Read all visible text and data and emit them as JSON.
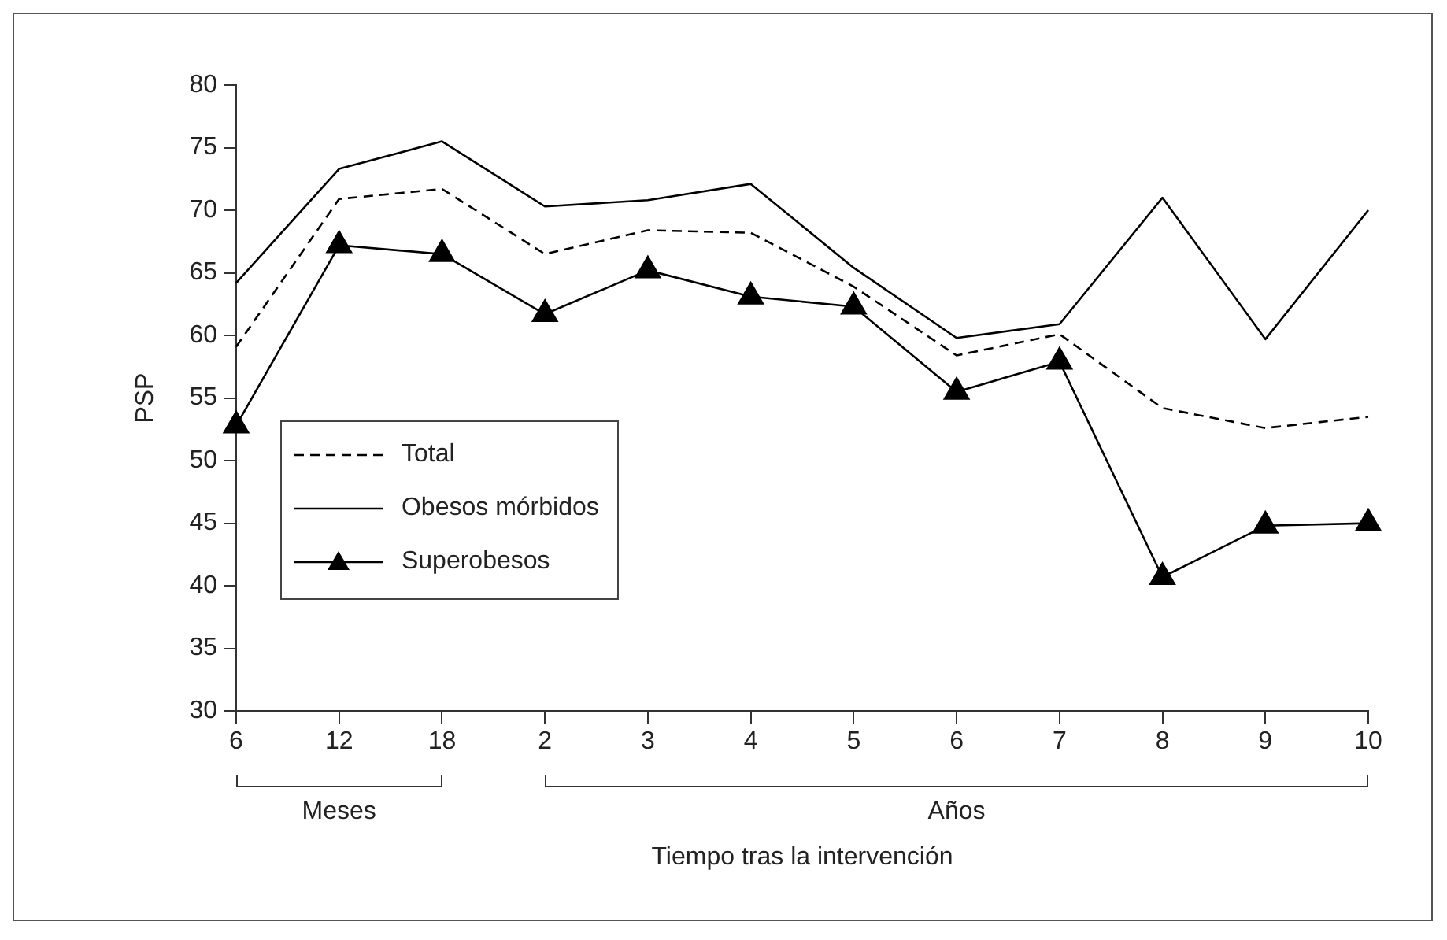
{
  "chart_data": {
    "type": "line",
    "xlabel": "Tiempo tras la intervención",
    "ylabel": "PSP",
    "categories": [
      "6",
      "12",
      "18",
      "2",
      "3",
      "4",
      "5",
      "6",
      "7",
      "8",
      "9",
      "10"
    ],
    "series": [
      {
        "name": "Total",
        "color": "#000000",
        "line_style": "dashed",
        "marker": "none",
        "values": [
          59.1,
          70.9,
          71.7,
          66.5,
          68.4,
          68.2,
          63.9,
          58.4,
          60.1,
          54.2,
          52.6,
          53.5
        ]
      },
      {
        "name": "Obesos mórbidos",
        "color": "#000000",
        "line_style": "solid",
        "marker": "none",
        "values": [
          64.2,
          73.3,
          75.5,
          70.3,
          70.8,
          72.1,
          65.4,
          59.8,
          60.9,
          71.0,
          59.7,
          70.0
        ]
      },
      {
        "name": "Superobesos",
        "color": "#000000",
        "line_style": "solid",
        "marker": "triangle",
        "values": [
          52.8,
          67.2,
          66.5,
          61.7,
          65.2,
          63.1,
          62.3,
          55.5,
          57.9,
          40.7,
          44.8,
          45.0
        ]
      }
    ],
    "annotations": [
      "Meses",
      "Años"
    ],
    "ylim": [
      30,
      80
    ],
    "yticks": [
      30,
      35,
      40,
      45,
      50,
      55,
      60,
      65,
      70,
      75,
      80
    ],
    "grid": false,
    "legend": "bottom left"
  }
}
